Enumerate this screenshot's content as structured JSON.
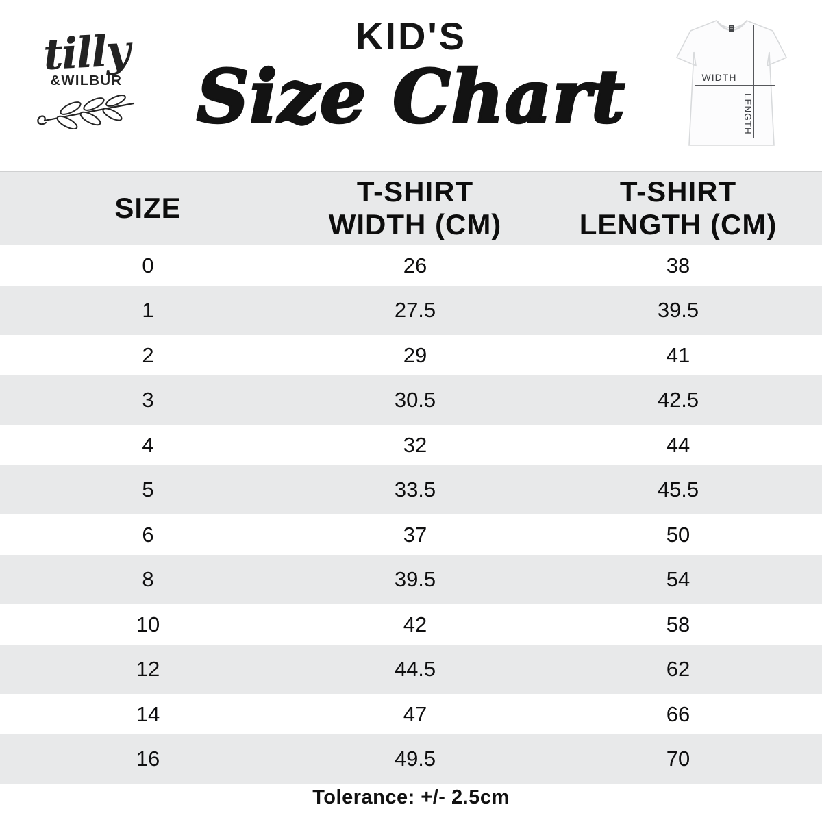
{
  "brand": {
    "script_name": "tilly",
    "caps_name": "&WILBUR"
  },
  "title": {
    "kicker": "KID'S",
    "main": "Size Chart"
  },
  "shirt_diagram": {
    "width_label": "WIDTH",
    "length_label": "LENGTH"
  },
  "table": {
    "columns": [
      {
        "line1": "SIZE",
        "line2": ""
      },
      {
        "line1": "T-SHIRT",
        "line2": "WIDTH (CM)"
      },
      {
        "line1": "T-SHIRT",
        "line2": "LENGTH (CM)"
      }
    ],
    "rows": [
      {
        "size": "0",
        "width": "26",
        "length": "38"
      },
      {
        "size": "1",
        "width": "27.5",
        "length": "39.5"
      },
      {
        "size": "2",
        "width": "29",
        "length": "41"
      },
      {
        "size": "3",
        "width": "30.5",
        "length": "42.5"
      },
      {
        "size": "4",
        "width": "32",
        "length": "44"
      },
      {
        "size": "5",
        "width": "33.5",
        "length": "45.5"
      },
      {
        "size": "6",
        "width": "37",
        "length": "50"
      },
      {
        "size": "8",
        "width": "39.5",
        "length": "54"
      },
      {
        "size": "10",
        "width": "42",
        "length": "58"
      },
      {
        "size": "12",
        "width": "44.5",
        "length": "62"
      },
      {
        "size": "14",
        "width": "47",
        "length": "66"
      },
      {
        "size": "16",
        "width": "49.5",
        "length": "70"
      }
    ]
  },
  "footer": {
    "tolerance_note": "Tolerance: +/- 2.5cm"
  },
  "colors": {
    "band_gray": "#e8e9ea",
    "ink": "#101010",
    "diagram_line": "#56585c"
  }
}
